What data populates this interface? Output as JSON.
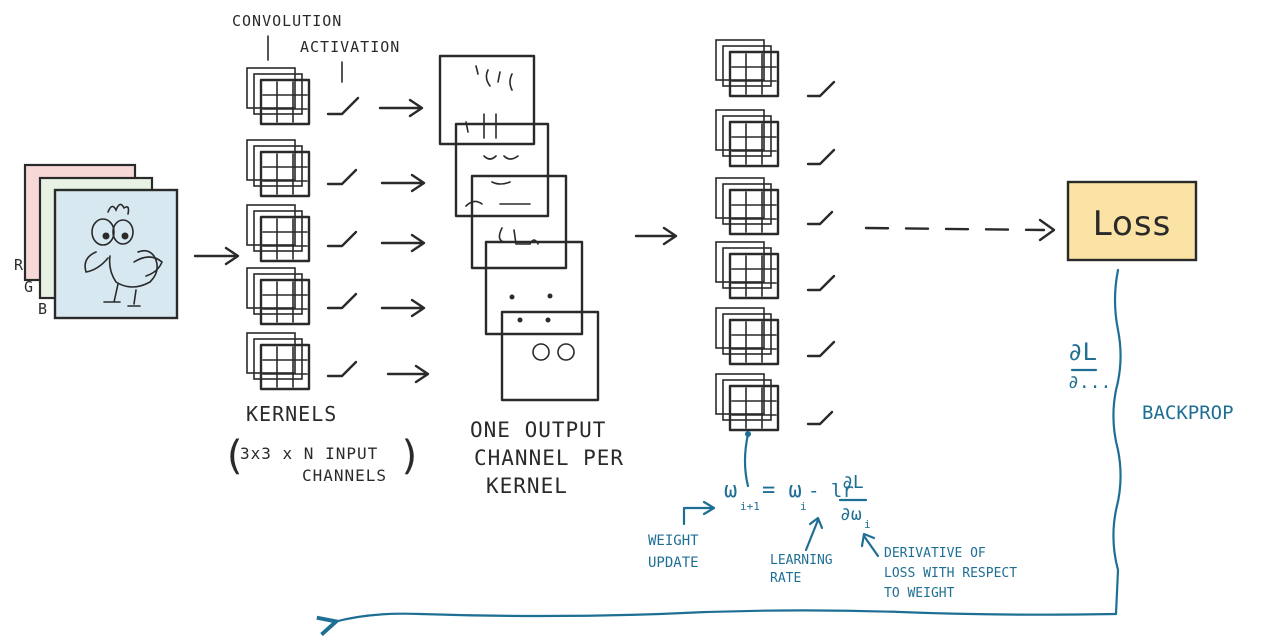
{
  "labels": {
    "convolution": "CONVOLUTION",
    "activation": "ACTIVATION",
    "kernels": "KERNELS",
    "kernels_dims_a": "3x3 x N INPUT",
    "kernels_dims_b": "CHANNELS",
    "output_line1": "ONE OUTPUT",
    "output_line2": "CHANNEL PER",
    "output_line3": "KERNEL",
    "loss": "Loss",
    "backprop": "BACKPROP",
    "grad_num": "∂L",
    "grad_den": "∂...",
    "channel_r": "R",
    "channel_g": "G",
    "channel_b": "B"
  },
  "update": {
    "formula_lhs": "ω",
    "formula_lhs_sub": "i+1",
    "formula_eq": "= ω",
    "formula_eq_sub": "i",
    "formula_lr": "- lr",
    "formula_frac_num": "∂L",
    "formula_frac_den": "∂ω",
    "formula_frac_den_sub": "i",
    "weight_update": "WEIGHT UPDATE",
    "learning_rate": "LEARNING RATE",
    "derivative_1": "DERIVATIVE OF",
    "derivative_2": "LOSS WITH RESPECT",
    "derivative_3": "TO WEIGHT"
  },
  "colors": {
    "ink": "#2a2a2a",
    "blue": "#1f6f94",
    "loss_fill": "#fbe3a6",
    "image_fill": "#d7e8f1",
    "layer_red": "#f6d9d7",
    "layer_green": "#e7f2e5"
  }
}
